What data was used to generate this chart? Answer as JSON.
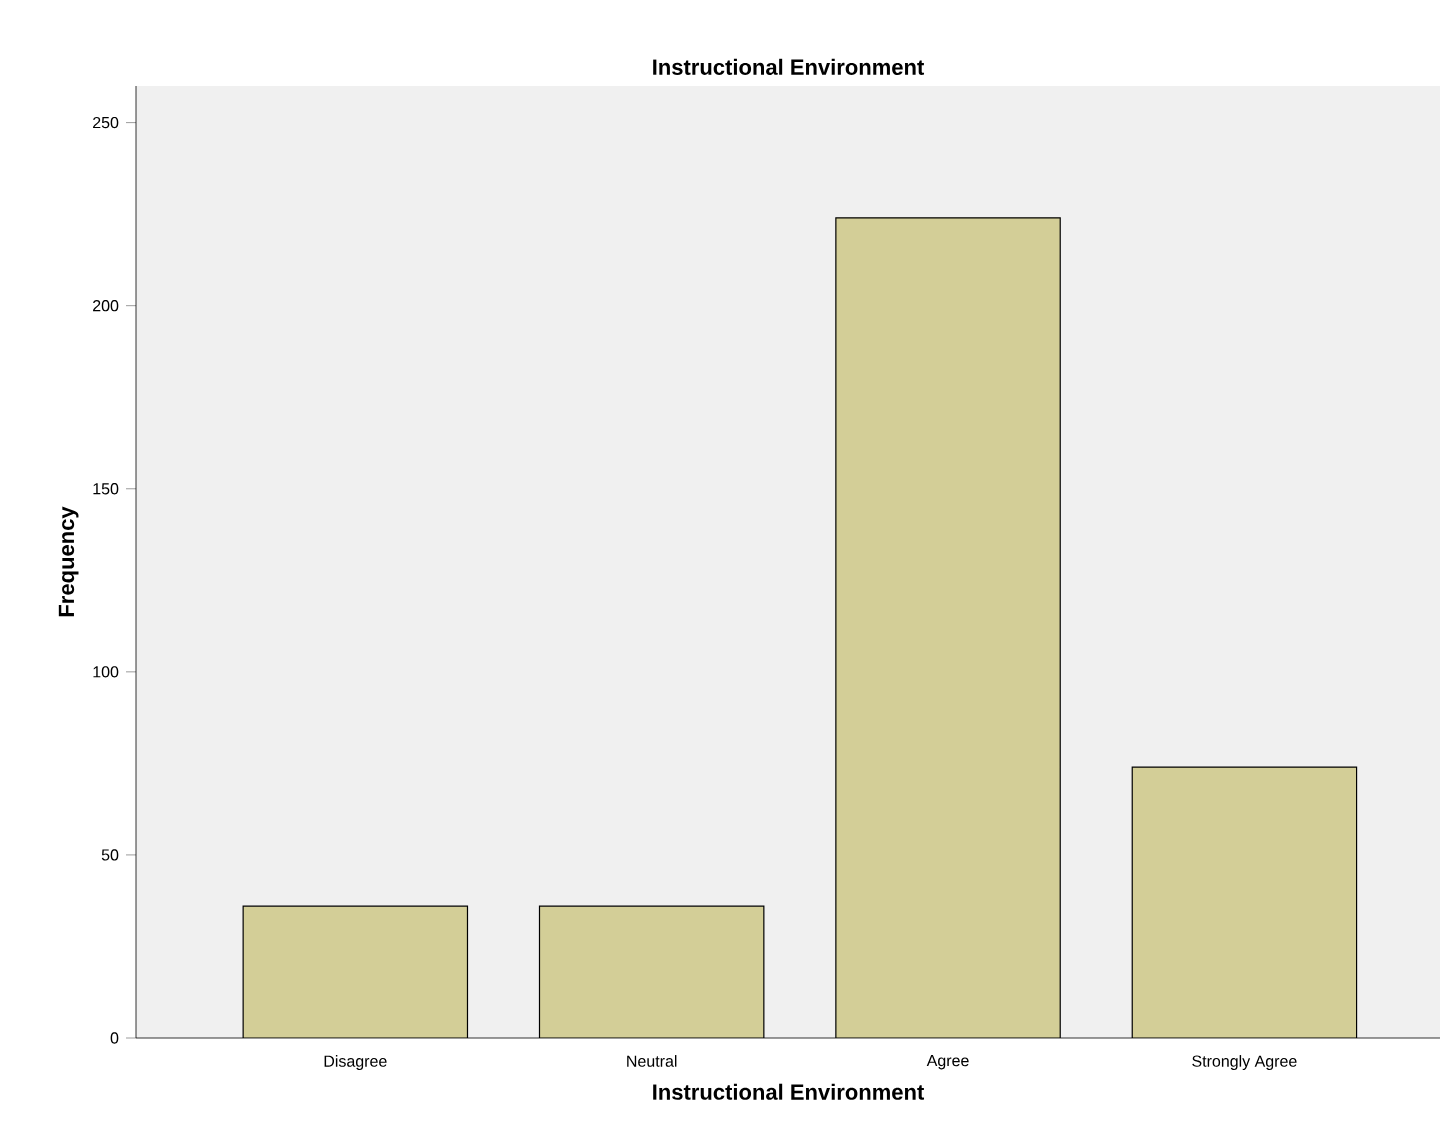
{
  "chart_data": {
    "type": "bar",
    "title": "Instructional Environment",
    "xlabel": "Instructional Environment",
    "ylabel": "Frequency",
    "categories": [
      "Disagree",
      "Neutral",
      "Agree",
      "Strongly Agree"
    ],
    "values": [
      36,
      36,
      224,
      74
    ],
    "color": "#d3ce97",
    "ylim": [
      0,
      260
    ],
    "yticks": [
      0,
      50,
      100,
      150,
      200,
      250
    ]
  }
}
